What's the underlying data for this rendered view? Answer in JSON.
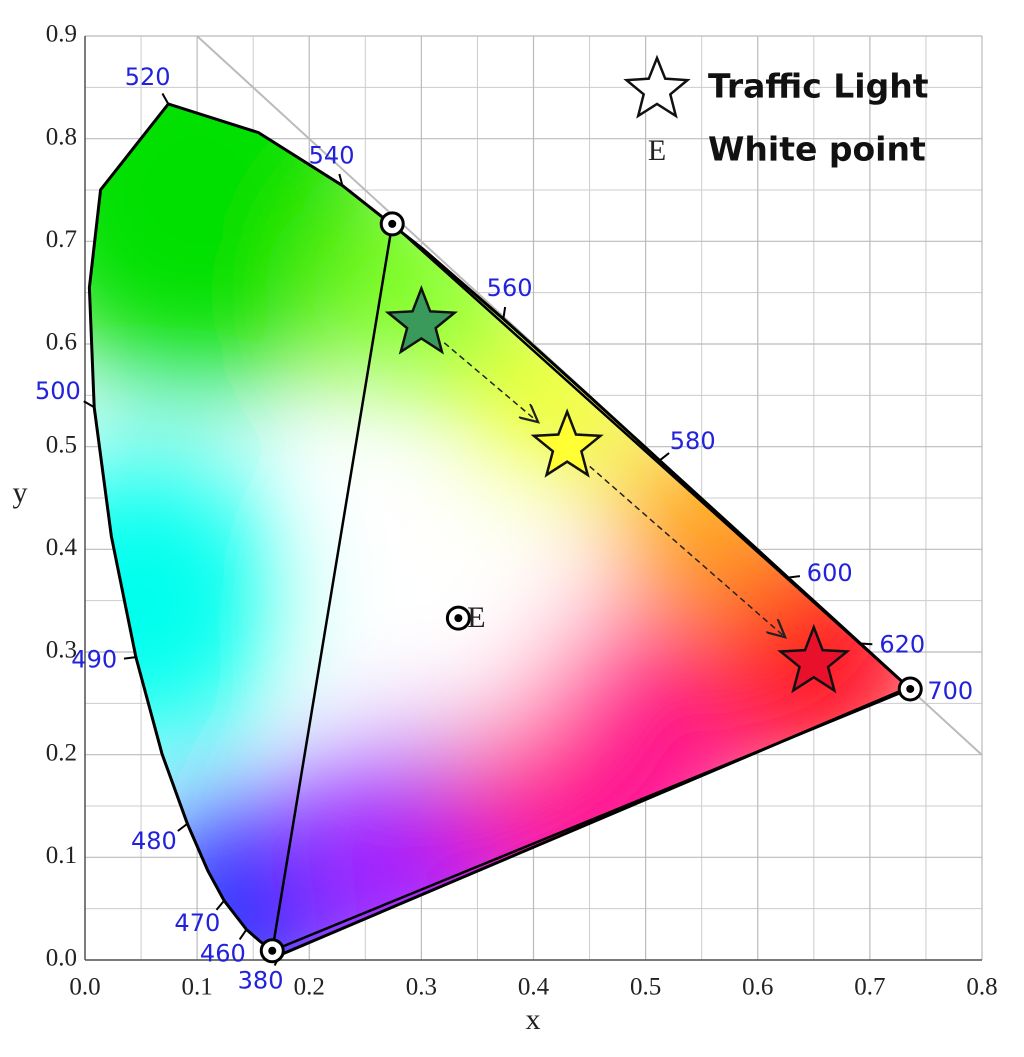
{
  "chart_data": {
    "type": "scatter",
    "xlabel": "x",
    "ylabel": "y",
    "xlim": [
      0,
      0.8
    ],
    "ylim": [
      0,
      0.9
    ],
    "xticks": [
      {
        "value": 0,
        "label": "0.0"
      },
      {
        "value": 0.1,
        "label": "0.1"
      },
      {
        "value": 0.2,
        "label": "0.2"
      },
      {
        "value": 0.3,
        "label": "0.3"
      },
      {
        "value": 0.4,
        "label": "0.4"
      },
      {
        "value": 0.5,
        "label": "0.5"
      },
      {
        "value": 0.6,
        "label": "0.6"
      },
      {
        "value": 0.7,
        "label": "0.7"
      },
      {
        "value": 0.8,
        "label": "0.8"
      }
    ],
    "yticks": [
      {
        "value": 0,
        "label": "0.0"
      },
      {
        "value": 0.1,
        "label": "0.1"
      },
      {
        "value": 0.2,
        "label": "0.2"
      },
      {
        "value": 0.3,
        "label": "0.3"
      },
      {
        "value": 0.4,
        "label": "0.4"
      },
      {
        "value": 0.5,
        "label": "0.5"
      },
      {
        "value": 0.6,
        "label": "0.6"
      },
      {
        "value": 0.7,
        "label": "0.7"
      },
      {
        "value": 0.8,
        "label": "0.8"
      },
      {
        "value": 0.9,
        "label": "0.9"
      }
    ],
    "xminor": [
      0.05,
      0.15,
      0.25,
      0.35,
      0.45,
      0.55,
      0.65,
      0.75
    ],
    "yminor": [
      0.05,
      0.15,
      0.25,
      0.35,
      0.45,
      0.55,
      0.65,
      0.75,
      0.85
    ],
    "grid": true,
    "locus": {
      "wavelengths": [
        380,
        null,
        460,
        470,
        null,
        480,
        null,
        490,
        null,
        500,
        null,
        null,
        520,
        null,
        540,
        null,
        560,
        null,
        580,
        null,
        600,
        null,
        620,
        null,
        700
      ],
      "x": [
        0.1741,
        0.1566,
        0.144,
        0.1241,
        0.1096,
        0.0913,
        0.0687,
        0.0454,
        0.0235,
        0.0082,
        0.0039,
        0.0139,
        0.0743,
        0.1547,
        0.2296,
        0.3016,
        0.3731,
        0.4441,
        0.5125,
        0.5752,
        0.627,
        0.6658,
        0.6915,
        0.719,
        0.7347
      ],
      "y": [
        0.005,
        0.0177,
        0.0297,
        0.0578,
        0.0868,
        0.1327,
        0.2007,
        0.295,
        0.4127,
        0.5384,
        0.6548,
        0.7502,
        0.8338,
        0.8059,
        0.7543,
        0.6923,
        0.6245,
        0.5547,
        0.4866,
        0.4242,
        0.3725,
        0.334,
        0.3083,
        0.2809,
        0.2653
      ]
    },
    "gamut": {
      "x": [
        0.274,
        0.167,
        0.736
      ],
      "y": [
        0.717,
        0.009,
        0.264
      ]
    },
    "legend": "upper right",
    "series": [
      {
        "name": "Traffic Light",
        "marker": "star",
        "x": [
          0.3,
          0.43,
          0.65
        ],
        "y": [
          0.62,
          0.5,
          0.29
        ],
        "colors": [
          "#3a9a5c",
          "#ffff33",
          "#e8102a"
        ]
      },
      {
        "name": "White point",
        "marker": "E",
        "x": [
          0.333
        ],
        "y": [
          0.333
        ]
      }
    ]
  }
}
